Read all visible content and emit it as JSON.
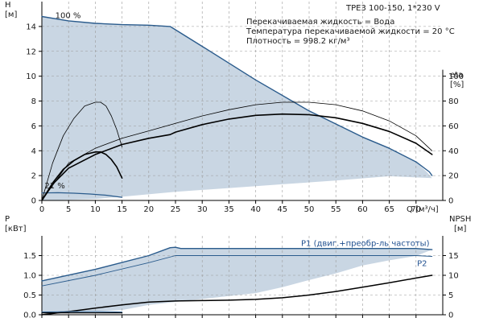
{
  "chart_data": [
    {
      "type": "line",
      "model": "TPE3 100-150, 1*230 V",
      "info_lines": [
        "Перекачиваемая жидкость = Вода",
        "Температура перекачиваемой жидкости = 20 °C",
        "Плотность = 998.2 кг/м³"
      ],
      "xlabel": "Q [м³/ч]",
      "xlim": [
        0,
        75
      ],
      "x_ticks": [
        "0",
        "5",
        "10",
        "15",
        "20",
        "25",
        "30",
        "35",
        "40",
        "45",
        "50",
        "55",
        "60",
        "65",
        "70"
      ],
      "y_left": {
        "label_top": "H",
        "label_unit": "[м]",
        "lim": [
          0,
          16
        ],
        "ticks": [
          "0",
          "2",
          "4",
          "6",
          "8",
          "10",
          "12",
          "14"
        ]
      },
      "y_right": {
        "label_top": "eta",
        "label_unit": "[%]",
        "lim": [
          0,
          160
        ],
        "ticks": [
          "0",
          "20",
          "40",
          "60",
          "80",
          "100"
        ]
      },
      "grid": true,
      "annotations": [
        {
          "text": "100 %",
          "x": 2.5,
          "y": 14.6
        },
        {
          "text": "21 %",
          "x": 0.5,
          "y": 0.9
        }
      ],
      "area": {
        "name": "operating range",
        "color": "#c9d6e3",
        "edge_color": "#2a5b8c",
        "points": [
          [
            0,
            14.8
          ],
          [
            5,
            14.45
          ],
          [
            10,
            14.25
          ],
          [
            15,
            14.15
          ],
          [
            20,
            14.1
          ],
          [
            24,
            14.0
          ],
          [
            30,
            12.4
          ],
          [
            40,
            9.7
          ],
          [
            50,
            7.2
          ],
          [
            60,
            5.1
          ],
          [
            65,
            4.2
          ],
          [
            70,
            3.1
          ],
          [
            72,
            2.3
          ],
          [
            73,
            1.8
          ],
          [
            65,
            1.95
          ],
          [
            55,
            1.6
          ],
          [
            45,
            1.3
          ],
          [
            35,
            1.0
          ],
          [
            25,
            0.7
          ],
          [
            15,
            0.3
          ],
          [
            10,
            0.12
          ],
          [
            5,
            0.05
          ],
          [
            0,
            0
          ]
        ]
      },
      "series": [
        {
          "name": "",
          "role": "head_100",
          "axis": "left",
          "color": "#2a5b8c",
          "width": 1.4,
          "points": [
            [
              0,
              14.8
            ],
            [
              5,
              14.45
            ],
            [
              10,
              14.25
            ],
            [
              15,
              14.15
            ],
            [
              20,
              14.1
            ],
            [
              24,
              14.0
            ],
            [
              30,
              12.4
            ],
            [
              40,
              9.7
            ],
            [
              50,
              7.2
            ],
            [
              60,
              5.1
            ],
            [
              65,
              4.2
            ],
            [
              70,
              3.1
            ],
            [
              72.5,
              2.3
            ],
            [
              73,
              2.0
            ]
          ]
        },
        {
          "name": "",
          "role": "head_21",
          "axis": "left",
          "color": "#2a5b8c",
          "width": 1.2,
          "points": [
            [
              0,
              0.6
            ],
            [
              3,
              0.62
            ],
            [
              6,
              0.58
            ],
            [
              9,
              0.52
            ],
            [
              12,
              0.42
            ],
            [
              15,
              0.25
            ]
          ]
        },
        {
          "name": "",
          "role": "head_duty",
          "axis": "left",
          "color": "#000000",
          "width": 1.6,
          "points": [
            [
              0,
              0
            ],
            [
              2,
              1.3
            ],
            [
              5,
              2.6
            ],
            [
              10,
              3.7
            ],
            [
              15,
              4.5
            ],
            [
              20,
              5.0
            ],
            [
              24,
              5.3
            ],
            [
              25,
              5.5
            ],
            [
              30,
              6.1
            ],
            [
              35,
              6.55
            ],
            [
              40,
              6.85
            ],
            [
              45,
              6.95
            ],
            [
              50,
              6.9
            ],
            [
              55,
              6.65
            ],
            [
              60,
              6.2
            ],
            [
              65,
              5.55
            ],
            [
              70,
              4.6
            ],
            [
              73,
              3.7
            ]
          ]
        },
        {
          "name": "",
          "role": "eta_main",
          "axis": "right",
          "color": "#000000",
          "width": 0.8,
          "points": [
            [
              0,
              0
            ],
            [
              5,
              30
            ],
            [
              10,
              42
            ],
            [
              15,
              50
            ],
            [
              20,
              56
            ],
            [
              25,
              62
            ],
            [
              30,
              68
            ],
            [
              35,
              73
            ],
            [
              40,
              77
            ],
            [
              45,
              79
            ],
            [
              50,
              79
            ],
            [
              55,
              77
            ],
            [
              60,
              72
            ],
            [
              65,
              64
            ],
            [
              70,
              52
            ],
            [
              73,
              40
            ]
          ]
        },
        {
          "name": "",
          "role": "eta_small",
          "axis": "right",
          "color": "#000000",
          "width": 0.8,
          "points": [
            [
              0,
              0
            ],
            [
              2,
              30
            ],
            [
              4,
              52
            ],
            [
              6,
              66
            ],
            [
              8,
              76
            ],
            [
              10,
              79
            ],
            [
              11,
              79
            ],
            [
              12,
              76
            ],
            [
              13,
              68
            ],
            [
              14,
              57
            ],
            [
              15,
              43
            ]
          ]
        },
        {
          "name": "",
          "role": "head_small",
          "axis": "left",
          "color": "#000000",
          "width": 1.6,
          "points": [
            [
              0,
              0
            ],
            [
              2,
              1.4
            ],
            [
              4,
              2.5
            ],
            [
              6,
              3.2
            ],
            [
              8,
              3.7
            ],
            [
              10,
              3.9
            ],
            [
              11,
              3.9
            ],
            [
              12,
              3.7
            ],
            [
              13,
              3.3
            ],
            [
              14,
              2.7
            ],
            [
              15,
              1.8
            ]
          ]
        }
      ]
    },
    {
      "type": "line",
      "xlim": [
        0,
        75
      ],
      "x_ticks": [
        "0",
        "5",
        "10",
        "15",
        "20",
        "25",
        "30",
        "35",
        "40",
        "45",
        "50",
        "55",
        "60",
        "65",
        "70"
      ],
      "y_left": {
        "label_top": "P",
        "label_unit": "[кВт]",
        "lim": [
          0,
          2
        ],
        "ticks": [
          "0.0",
          "0.5",
          "1.0",
          "1.5"
        ]
      },
      "y_right": {
        "label_top": "NPSH",
        "label_unit": "[м]",
        "lim": [
          0,
          20
        ],
        "ticks": [
          "0",
          "5",
          "10",
          "15"
        ]
      },
      "grid": true,
      "area": {
        "name": "power range",
        "color": "#c9d6e3",
        "edge_color": "#2a5b8c",
        "points": [
          [
            0,
            0.86
          ],
          [
            10,
            1.15
          ],
          [
            20,
            1.5
          ],
          [
            24,
            1.7
          ],
          [
            25,
            1.71
          ],
          [
            26,
            1.68
          ],
          [
            40,
            1.68
          ],
          [
            60,
            1.68
          ],
          [
            70,
            1.68
          ],
          [
            73,
            1.65
          ],
          [
            70,
            1.49
          ],
          [
            65,
            1.38
          ],
          [
            60,
            1.25
          ],
          [
            55,
            1.05
          ],
          [
            50,
            0.88
          ],
          [
            45,
            0.7
          ],
          [
            40,
            0.55
          ],
          [
            30,
            0.4
          ],
          [
            20,
            0.25
          ],
          [
            15,
            0.12
          ],
          [
            10,
            0.08
          ],
          [
            5,
            0.05
          ],
          [
            0,
            0.05
          ]
        ]
      },
      "series": [
        {
          "name": "P1 (двиг.+преобр-ль частоты)",
          "role": "p1",
          "axis": "left",
          "color": "#2a5b8c",
          "width": 1.4,
          "points": [
            [
              0,
              0.86
            ],
            [
              10,
              1.15
            ],
            [
              20,
              1.5
            ],
            [
              24,
              1.7
            ],
            [
              25,
              1.71
            ],
            [
              26,
              1.68
            ],
            [
              40,
              1.68
            ],
            [
              60,
              1.68
            ],
            [
              70,
              1.68
            ],
            [
              73,
              1.65
            ]
          ]
        },
        {
          "name": "P2",
          "role": "p2",
          "axis": "left",
          "color": "#2a5b8c",
          "width": 0.9,
          "points": [
            [
              0,
              0.73
            ],
            [
              10,
              1.0
            ],
            [
              20,
              1.32
            ],
            [
              25,
              1.5
            ],
            [
              40,
              1.5
            ],
            [
              60,
              1.5
            ],
            [
              70,
              1.5
            ],
            [
              73,
              1.48
            ]
          ]
        },
        {
          "name": "",
          "role": "p_duty",
          "axis": "left",
          "color": "#000000",
          "width": 1.5,
          "points": [
            [
              0,
              0.0
            ],
            [
              5,
              0.08
            ],
            [
              10,
              0.17
            ],
            [
              15,
              0.25
            ],
            [
              20,
              0.32
            ],
            [
              25,
              0.35
            ],
            [
              30,
              0.36
            ],
            [
              35,
              0.37
            ],
            [
              40,
              0.39
            ],
            [
              45,
              0.43
            ],
            [
              50,
              0.5
            ],
            [
              55,
              0.59
            ],
            [
              60,
              0.7
            ],
            [
              65,
              0.81
            ],
            [
              70,
              0.93
            ],
            [
              73,
              1.0
            ]
          ]
        },
        {
          "name": "",
          "role": "p_small",
          "axis": "left",
          "color": "#000000",
          "width": 1.2,
          "points": [
            [
              0,
              0.05
            ],
            [
              5,
              0.05
            ],
            [
              10,
              0.05
            ],
            [
              15,
              0.05
            ]
          ]
        },
        {
          "name": "",
          "role": "p_min",
          "axis": "left",
          "color": "#2a5b8c",
          "width": 1.0,
          "points": [
            [
              0,
              0.07
            ],
            [
              5,
              0.08
            ],
            [
              10,
              0.08
            ],
            [
              15,
              0.07
            ]
          ]
        }
      ]
    }
  ]
}
